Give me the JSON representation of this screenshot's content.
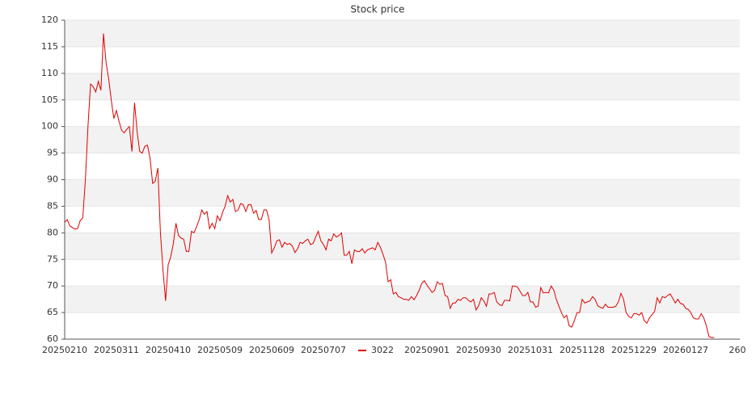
{
  "chart_data": {
    "type": "line",
    "title": "Stock price",
    "categories": [
      "20250210",
      null,
      null,
      null,
      null,
      null,
      null,
      null,
      null,
      null,
      null,
      null,
      null,
      null,
      null,
      null,
      null,
      null,
      null,
      null,
      "20250311",
      null,
      null,
      null,
      null,
      null,
      null,
      null,
      null,
      null,
      null,
      null,
      null,
      null,
      null,
      null,
      null,
      null,
      null,
      null,
      "20250410",
      null,
      null,
      null,
      null,
      null,
      null,
      null,
      null,
      null,
      null,
      null,
      null,
      null,
      null,
      null,
      null,
      null,
      null,
      null,
      "20250509",
      null,
      null,
      null,
      null,
      null,
      null,
      null,
      null,
      null,
      null,
      null,
      null,
      null,
      null,
      null,
      null,
      null,
      null,
      null,
      "20250609",
      null,
      null,
      null,
      null,
      null,
      null,
      null,
      null,
      null,
      null,
      null,
      null,
      null,
      null,
      null,
      null,
      null,
      null,
      null,
      "20250707",
      null,
      null,
      null,
      null,
      null,
      null,
      null,
      null,
      null,
      null,
      null,
      null,
      null,
      null,
      null,
      null,
      null,
      null,
      null,
      null,
      null,
      null,
      null,
      null,
      null,
      null,
      null,
      null,
      null,
      null,
      null,
      null,
      null,
      null,
      null,
      null,
      null,
      null,
      null,
      "20250901",
      null,
      null,
      null,
      null,
      null,
      null,
      null,
      null,
      null,
      null,
      null,
      null,
      null,
      null,
      null,
      null,
      null,
      null,
      null,
      "20250930",
      null,
      null,
      null,
      null,
      null,
      null,
      null,
      null,
      null,
      null,
      null,
      null,
      null,
      null,
      null,
      null,
      null,
      null,
      null,
      "20251031",
      null,
      null,
      null,
      null,
      null,
      null,
      null,
      null,
      null,
      null,
      null,
      null,
      null,
      null,
      null,
      null,
      null,
      null,
      null,
      "20251128",
      null,
      null,
      null,
      null,
      null,
      null,
      null,
      null,
      null,
      null,
      null,
      null,
      null,
      null,
      null,
      null,
      null,
      null,
      null,
      "20251229",
      null,
      null,
      null,
      null,
      null,
      null,
      null,
      null,
      null,
      null,
      null,
      null,
      null,
      null,
      null,
      null,
      null,
      null,
      null,
      "20260127",
      null,
      null,
      null,
      null,
      null,
      null,
      null,
      null,
      null,
      null,
      null,
      null,
      null,
      null,
      null,
      null,
      null,
      null,
      null,
      "260"
    ],
    "series": [
      {
        "name": "3022",
        "color": "#e00000",
        "values": [
          82,
          82.5,
          81.3,
          81,
          80.7,
          80.8,
          82.3,
          82.8,
          90,
          100,
          108,
          107.5,
          106.5,
          108.5,
          106.8,
          117.5,
          112,
          109,
          105,
          101.5,
          103,
          101,
          99.3,
          98.8,
          99.5,
          100,
          95.3,
          104.5,
          99,
          95.3,
          95,
          96.3,
          96.5,
          94,
          89.3,
          89.7,
          92.2,
          80,
          73,
          67.2,
          74,
          75.5,
          78,
          81.8,
          79.5,
          79,
          78.8,
          76.5,
          76.5,
          80.3,
          80,
          81.2,
          82.5,
          84.3,
          83.5,
          84,
          80.8,
          81.8,
          80.8,
          83.2,
          82.3,
          83.8,
          85,
          87,
          85.8,
          86.3,
          84,
          84.3,
          85.5,
          85.3,
          84,
          85.3,
          85.3,
          83.7,
          84.2,
          82.5,
          82.5,
          84.3,
          84.3,
          82.5,
          76.2,
          77.2,
          78.5,
          78.7,
          77.3,
          78.2,
          77.8,
          78,
          77.5,
          76.3,
          77,
          78.2,
          78,
          78.5,
          78.8,
          77.8,
          78,
          79.2,
          80.3,
          78.5,
          77.8,
          76.8,
          78.8,
          78.5,
          79.8,
          79.2,
          79.5,
          80,
          75.8,
          75.8,
          76.5,
          74.2,
          76.8,
          76.5,
          76.5,
          77,
          76.2,
          76.8,
          77,
          77.2,
          76.8,
          78.2,
          77.3,
          76,
          74.5,
          70.8,
          71.2,
          68.5,
          68.8,
          68,
          67.8,
          67.5,
          67.5,
          67.3,
          68,
          67.4,
          68.2,
          69.2,
          70.5,
          71,
          70.2,
          69.5,
          68.8,
          69.2,
          70.8,
          70.3,
          70.5,
          68.2,
          68,
          65.8,
          66.8,
          66.8,
          67.5,
          67.3,
          67.8,
          67.8,
          67.3,
          67,
          67.5,
          65.5,
          66.3,
          67.8,
          67.2,
          66.2,
          68.5,
          68.5,
          68.8,
          67,
          66.5,
          66.3,
          67.3,
          67.3,
          67.2,
          70,
          70,
          69.8,
          69,
          68.2,
          68.2,
          68.8,
          67,
          67,
          66,
          66.2,
          69.7,
          68.7,
          68.8,
          68.7,
          70,
          69.3,
          67.5,
          66.2,
          65,
          64,
          64.5,
          62.5,
          62.3,
          63.5,
          65,
          65,
          67.5,
          66.8,
          67,
          67.2,
          68,
          67.5,
          66.3,
          66,
          65.8,
          66.6,
          66,
          66,
          66,
          66.2,
          67,
          68.6,
          67.5,
          65,
          64.3,
          64,
          64.8,
          64.8,
          64.5,
          65,
          63.5,
          63,
          64,
          64.6,
          65.2,
          67.8,
          66.8,
          68,
          67.8,
          68.2,
          68.5,
          67.7,
          66.8,
          67.5,
          66.7,
          66.6,
          65.8,
          65.6,
          65,
          64,
          63.8,
          63.8,
          64.8,
          64,
          62.5,
          60.5,
          60.3,
          60.3,
          null,
          null,
          null,
          null,
          null,
          null,
          null,
          null,
          null
        ]
      }
    ],
    "ylim": [
      60,
      120
    ],
    "yticks": [
      60,
      65,
      70,
      75,
      80,
      85,
      90,
      95,
      100,
      105,
      110,
      115,
      120
    ],
    "grid": "bands",
    "legend": "bottom"
  }
}
